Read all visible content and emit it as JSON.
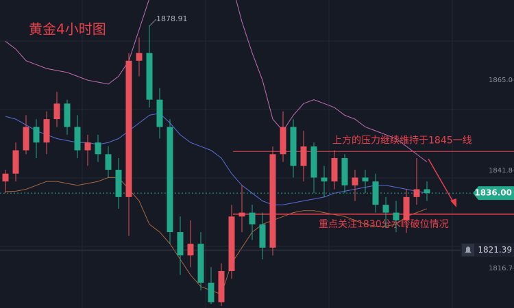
{
  "chart_data": {
    "type": "candlestick",
    "title": "黄金4小时图",
    "ylim": [
      1806.5,
      1885.6
    ],
    "yticks": [
      {
        "value": 1865.0,
        "label": "1865.0"
      },
      {
        "value": 1841.8,
        "label": "1841.8"
      },
      {
        "value": 1816.7,
        "label": "1816.7"
      }
    ],
    "up_color": "#e8505b",
    "down_color": "#22a88b",
    "open": [
      1839,
      1841,
      1847,
      1853,
      1849,
      1855,
      1859,
      1853,
      1847,
      1849,
      1846,
      1842,
      1835,
      1870,
      1872,
      1860,
      1853,
      1826,
      1820,
      1823,
      1813,
      1808,
      1816,
      1830,
      1831,
      1828,
      1822,
      1846,
      1853,
      1843,
      1848,
      1840,
      1839,
      1845,
      1838,
      1840,
      1839,
      1833,
      1831,
      1829,
      1835,
      1837
    ],
    "high": [
      1842,
      1849,
      1856,
      1855,
      1857,
      1862,
      1860,
      1856,
      1851,
      1851,
      1848,
      1845,
      1872,
      1876,
      1878.91,
      1863,
      1855,
      1830,
      1829,
      1826,
      1817,
      1818,
      1833,
      1838,
      1833,
      1831,
      1848,
      1857,
      1855,
      1852,
      1849,
      1843,
      1847,
      1846,
      1842,
      1842,
      1841,
      1835,
      1834,
      1837,
      1845,
      1839
    ],
    "low": [
      1836,
      1839,
      1846,
      1845,
      1846,
      1853,
      1851,
      1845,
      1843,
      1844,
      1840,
      1832,
      1825,
      1866,
      1858,
      1850,
      1823,
      1815,
      1817,
      1811,
      1807.5,
      1807,
      1814,
      1826,
      1824,
      1819,
      1820,
      1844,
      1840,
      1839,
      1836,
      1835,
      1837,
      1836,
      1834,
      1836,
      1831,
      1827,
      1826,
      1825.8,
      1833,
      1834
    ],
    "close": [
      1841,
      1847,
      1853,
      1849,
      1855,
      1859,
      1853,
      1847,
      1849,
      1846,
      1842,
      1835,
      1870,
      1872,
      1860,
      1853,
      1826,
      1820,
      1823,
      1813,
      1808,
      1816,
      1830,
      1831,
      1828,
      1822,
      1846,
      1853,
      1843,
      1848,
      1840,
      1839,
      1845,
      1838,
      1840,
      1839,
      1833,
      1831,
      1829,
      1835,
      1837,
      1836
    ],
    "bands": [
      {
        "color": "#c56fb4",
        "values": [
          1875,
          1873,
          1870,
          1869,
          1868,
          1867.5,
          1867,
          1866,
          1865,
          1864.5,
          1864,
          1866,
          1870,
          1878,
          1886,
          1890,
          1893,
          1895,
          1896,
          1896,
          1895,
          1893,
          1890,
          1880,
          1872,
          1865,
          1855,
          1852,
          1856,
          1859,
          1860,
          1859,
          1858,
          1856,
          1855,
          1853,
          1852,
          1851,
          1850,
          1848,
          1846,
          1844
        ]
      },
      {
        "color": "#5a6fd6",
        "values": [
          1855.7,
          1855,
          1853.5,
          1852,
          1851,
          1850,
          1849.5,
          1849,
          1849,
          1848.5,
          1849,
          1850,
          1852,
          1854,
          1856,
          1856.5,
          1854,
          1851,
          1849,
          1848,
          1847,
          1845,
          1841,
          1838,
          1836,
          1834,
          1833,
          1833,
          1833.5,
          1834,
          1834.5,
          1835,
          1836,
          1836.5,
          1837,
          1837.5,
          1838,
          1838,
          1837.5,
          1837,
          1836.5,
          1836
        ]
      },
      {
        "color": "#a8683e",
        "values": [
          1836.4,
          1836.5,
          1837,
          1838,
          1839,
          1839,
          1838.5,
          1838,
          1838.5,
          1839,
          1840,
          1840,
          1837,
          1834,
          1828,
          1826,
          1823,
          1819,
          1815,
          1812,
          1811,
          1810,
          1818,
          1822,
          1826,
          1828,
          1829,
          1830,
          1831,
          1831.5,
          1831.5,
          1831,
          1830.5,
          1830,
          1829,
          1828,
          1827.5,
          1827.5,
          1828,
          1830,
          1831,
          1832
        ]
      }
    ],
    "high_marker": {
      "value": 1878.91,
      "label": "1878.91"
    },
    "last_price": {
      "value": 1836.0,
      "label": "1836.00"
    },
    "alert": {
      "value": 1821.39,
      "label": "1821.39"
    },
    "annotations": [
      {
        "text": "上方的压力继续维持于1845一线",
        "value": 1846.7
      },
      {
        "text": "重点关注1830分水岭破位情况",
        "value": 1830.6
      }
    ]
  }
}
